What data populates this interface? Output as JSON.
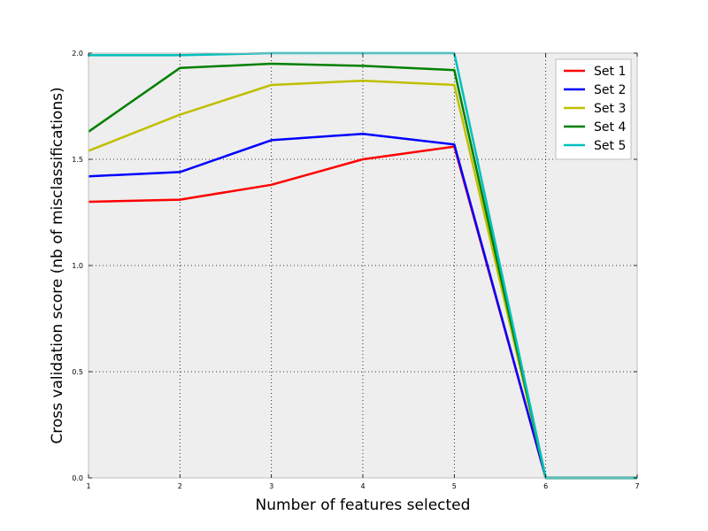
{
  "chart_data": {
    "type": "line",
    "title": "",
    "xlabel": "Number of features selected",
    "ylabel": "Cross validation score (nb of misclassifications)",
    "xlim": [
      1,
      7
    ],
    "ylim": [
      0.0,
      2.0
    ],
    "x_ticks": [
      1,
      2,
      3,
      4,
      5,
      6,
      7
    ],
    "y_ticks": [
      0.0,
      0.5,
      1.0,
      1.5,
      2.0
    ],
    "x_tick_labels": [
      "1",
      "2",
      "3",
      "4",
      "5",
      "6",
      "7"
    ],
    "y_tick_labels": [
      "0.0",
      "0.5",
      "1.0",
      "1.5",
      "2.0"
    ],
    "grid": true,
    "legend_position": "top-right",
    "x": [
      1,
      2,
      3,
      4,
      5,
      6,
      7
    ],
    "series": [
      {
        "name": "Set 1",
        "color": "#ff0000",
        "values": [
          1.3,
          1.31,
          1.38,
          1.5,
          1.56,
          0.0,
          0.0
        ]
      },
      {
        "name": "Set 2",
        "color": "#0000ff",
        "values": [
          1.42,
          1.44,
          1.59,
          1.62,
          1.57,
          0.0,
          0.0
        ]
      },
      {
        "name": "Set 3",
        "color": "#bfbf00",
        "values": [
          1.54,
          1.71,
          1.85,
          1.87,
          1.85,
          0.0,
          0.0
        ]
      },
      {
        "name": "Set 4",
        "color": "#008000",
        "values": [
          1.63,
          1.93,
          1.95,
          1.94,
          1.92,
          0.0,
          0.0
        ]
      },
      {
        "name": "Set 5",
        "color": "#00bfbf",
        "values": [
          1.99,
          1.99,
          2.0,
          2.0,
          2.0,
          0.0,
          0.0
        ]
      }
    ]
  }
}
